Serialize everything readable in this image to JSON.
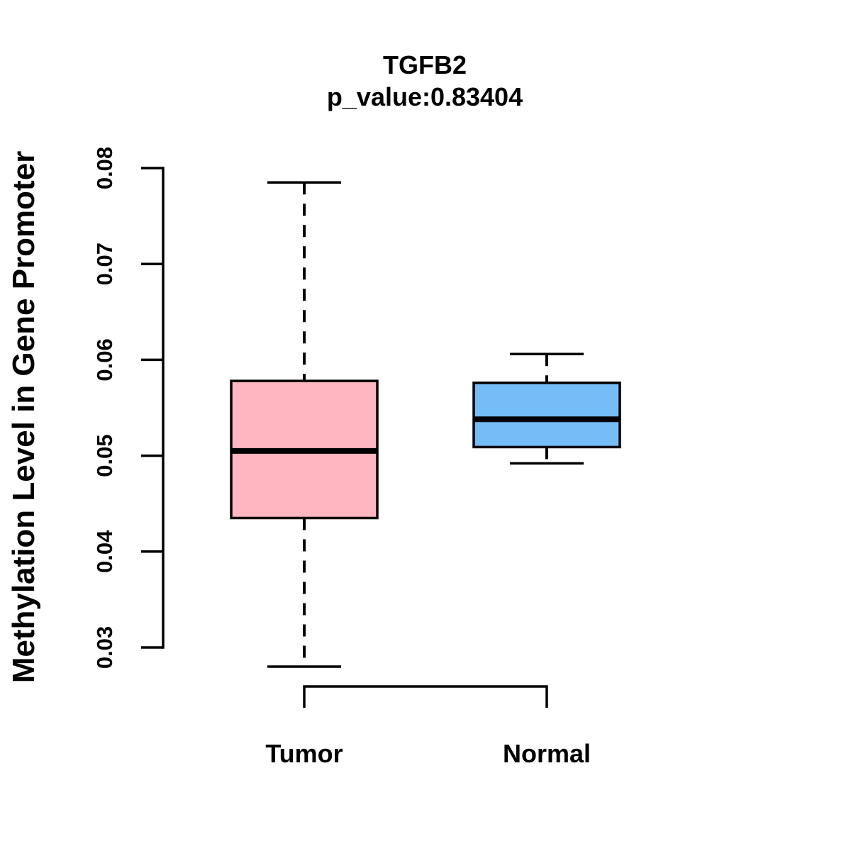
{
  "title": "TGFB2",
  "subtitle": "p_value:0.83404",
  "p_value": 0.83404,
  "colors": {
    "tumor_fill": "#FFB6C1",
    "normal_fill": "#74BDF7",
    "line": "#000000",
    "background": "#ffffff"
  },
  "chart_data": {
    "type": "boxplot",
    "title": "TGFB2",
    "subtitle": "p_value:0.83404",
    "xlabel": "",
    "ylabel": "Methylation Level in Gene Promoter",
    "ylim": [
      0.028,
      0.08
    ],
    "yticks": [
      0.08,
      0.07,
      0.06,
      0.05,
      0.04,
      0.03
    ],
    "ytick_labels": [
      "0.08",
      "0.07",
      "0.06",
      "0.05",
      "0.04",
      "0.03"
    ],
    "grid": false,
    "legend_position": "none",
    "categories": [
      "Tumor",
      "Normal"
    ],
    "series": [
      {
        "name": "Tumor",
        "color": "#FFB6C1",
        "min": 0.028,
        "q1": 0.0435,
        "median": 0.0505,
        "q3": 0.0578,
        "max": 0.0785
      },
      {
        "name": "Normal",
        "color": "#74BDF7",
        "min": 0.0492,
        "q1": 0.0509,
        "median": 0.0538,
        "q3": 0.0576,
        "max": 0.0606
      }
    ]
  }
}
